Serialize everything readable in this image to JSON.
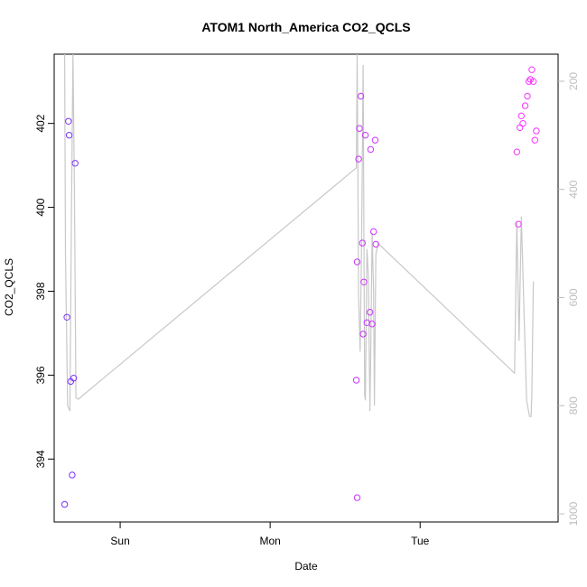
{
  "chart_data": {
    "type": "scatter",
    "title": "ATOM1 North_America CO2_QCLS",
    "xlabel": "Date",
    "ylabel": "CO2_QCLS",
    "x_ticks": [
      "Sun",
      "Mon",
      "Tue"
    ],
    "x_tick_days": [
      1,
      2,
      3
    ],
    "y_ticks": [
      394,
      396,
      398,
      400,
      402
    ],
    "y_right_ticks": [
      200,
      400,
      600,
      800,
      1000
    ],
    "xlim_days": [
      0.56,
      3.92
    ],
    "ylim": [
      392.5,
      403.65
    ],
    "y_right_lim": [
      1015,
      150
    ],
    "grid": false,
    "colors": {
      "axis": "#000000",
      "secondary_axis": "#bdbdbd",
      "line": "#c8c8c8",
      "point_low": "#7733ff",
      "point_high": "#ff33ff"
    },
    "points": [
      {
        "x": 0.63,
        "y": 392.92
      },
      {
        "x": 0.645,
        "y": 397.38
      },
      {
        "x": 0.655,
        "y": 402.05
      },
      {
        "x": 0.66,
        "y": 401.72
      },
      {
        "x": 0.67,
        "y": 395.85
      },
      {
        "x": 0.68,
        "y": 393.62
      },
      {
        "x": 0.69,
        "y": 395.93
      },
      {
        "x": 0.7,
        "y": 401.05
      },
      {
        "x": 2.575,
        "y": 395.88
      },
      {
        "x": 2.58,
        "y": 393.08
      },
      {
        "x": 2.58,
        "y": 398.7
      },
      {
        "x": 2.59,
        "y": 401.15
      },
      {
        "x": 2.595,
        "y": 401.88
      },
      {
        "x": 2.605,
        "y": 402.65
      },
      {
        "x": 2.615,
        "y": 399.15
      },
      {
        "x": 2.62,
        "y": 396.98
      },
      {
        "x": 2.625,
        "y": 398.22
      },
      {
        "x": 2.635,
        "y": 401.72
      },
      {
        "x": 2.645,
        "y": 397.25
      },
      {
        "x": 2.665,
        "y": 397.5
      },
      {
        "x": 2.67,
        "y": 401.38
      },
      {
        "x": 2.68,
        "y": 397.22
      },
      {
        "x": 2.69,
        "y": 399.42
      },
      {
        "x": 2.7,
        "y": 401.6
      },
      {
        "x": 2.705,
        "y": 399.12
      },
      {
        "x": 3.645,
        "y": 401.32
      },
      {
        "x": 3.655,
        "y": 399.6
      },
      {
        "x": 3.665,
        "y": 401.9
      },
      {
        "x": 3.675,
        "y": 402.18
      },
      {
        "x": 3.685,
        "y": 402.0
      },
      {
        "x": 3.7,
        "y": 402.42
      },
      {
        "x": 3.715,
        "y": 402.65
      },
      {
        "x": 3.725,
        "y": 403.0
      },
      {
        "x": 3.735,
        "y": 403.05
      },
      {
        "x": 3.745,
        "y": 403.28
      },
      {
        "x": 3.755,
        "y": 403.0
      },
      {
        "x": 3.765,
        "y": 401.6
      },
      {
        "x": 3.775,
        "y": 401.82
      }
    ],
    "line_secondary": [
      {
        "x": 0.63,
        "y": 150
      },
      {
        "x": 0.635,
        "y": 520
      },
      {
        "x": 0.65,
        "y": 800
      },
      {
        "x": 0.665,
        "y": 810
      },
      {
        "x": 0.675,
        "y": 450
      },
      {
        "x": 0.685,
        "y": 150
      },
      {
        "x": 0.695,
        "y": 400
      },
      {
        "x": 0.705,
        "y": 785
      },
      {
        "x": 0.72,
        "y": 788
      },
      {
        "x": 2.575,
        "y": 360
      },
      {
        "x": 2.58,
        "y": 150
      },
      {
        "x": 2.59,
        "y": 600
      },
      {
        "x": 2.6,
        "y": 700
      },
      {
        "x": 2.61,
        "y": 500
      },
      {
        "x": 2.62,
        "y": 170
      },
      {
        "x": 2.63,
        "y": 780
      },
      {
        "x": 2.635,
        "y": 790
      },
      {
        "x": 2.645,
        "y": 510
      },
      {
        "x": 2.655,
        "y": 560
      },
      {
        "x": 2.665,
        "y": 810
      },
      {
        "x": 2.67,
        "y": 720
      },
      {
        "x": 2.68,
        "y": 480
      },
      {
        "x": 2.69,
        "y": 590
      },
      {
        "x": 2.695,
        "y": 800
      },
      {
        "x": 2.705,
        "y": 520
      },
      {
        "x": 2.72,
        "y": 500
      },
      {
        "x": 3.63,
        "y": 740
      },
      {
        "x": 3.645,
        "y": 460
      },
      {
        "x": 3.66,
        "y": 680
      },
      {
        "x": 3.675,
        "y": 450
      },
      {
        "x": 3.69,
        "y": 600
      },
      {
        "x": 3.71,
        "y": 790
      },
      {
        "x": 3.73,
        "y": 820
      },
      {
        "x": 3.74,
        "y": 820
      },
      {
        "x": 3.745,
        "y": 780
      },
      {
        "x": 3.755,
        "y": 570
      }
    ]
  }
}
